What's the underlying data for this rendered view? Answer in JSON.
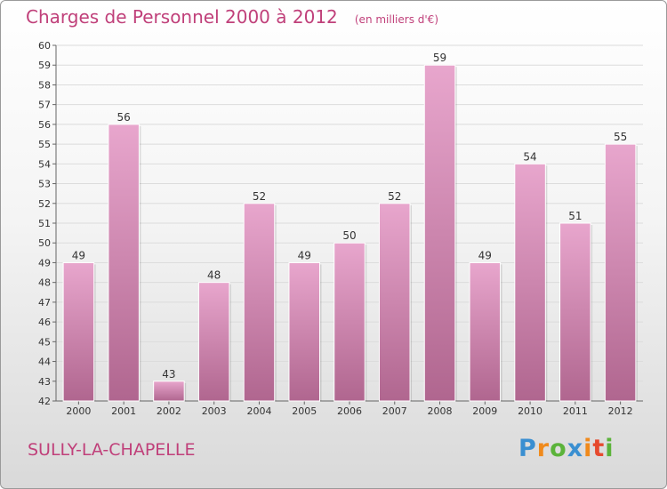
{
  "title": "Charges de Personnel 2000 à 2012",
  "subtitle": "(en milliers d'€)",
  "city": "SULLY-LA-CHAPELLE",
  "logo": {
    "letters": [
      "P",
      "r",
      "o",
      "x",
      "i",
      "t",
      "i"
    ],
    "colors": [
      "#3a8fd1",
      "#f08a1c",
      "#5bb33a",
      "#3a8fd1",
      "#f08a1c",
      "#e64a2e",
      "#5bb33a"
    ]
  },
  "colors": {
    "bar_top": "#e8a6cd",
    "bar_bottom": "#b0668f",
    "title": "#c0407a"
  },
  "chart_data": {
    "type": "bar",
    "categories": [
      "2000",
      "2001",
      "2002",
      "2003",
      "2004",
      "2005",
      "2006",
      "2007",
      "2008",
      "2009",
      "2010",
      "2011",
      "2012"
    ],
    "values": [
      49,
      56,
      43,
      48,
      52,
      49,
      50,
      52,
      59,
      49,
      54,
      51,
      55
    ],
    "ylim": [
      42,
      60
    ],
    "yticks": [
      42,
      43,
      44,
      45,
      46,
      47,
      48,
      49,
      50,
      51,
      52,
      53,
      54,
      55,
      56,
      57,
      58,
      59,
      60
    ],
    "grid": "horizontal",
    "legend": "none"
  }
}
